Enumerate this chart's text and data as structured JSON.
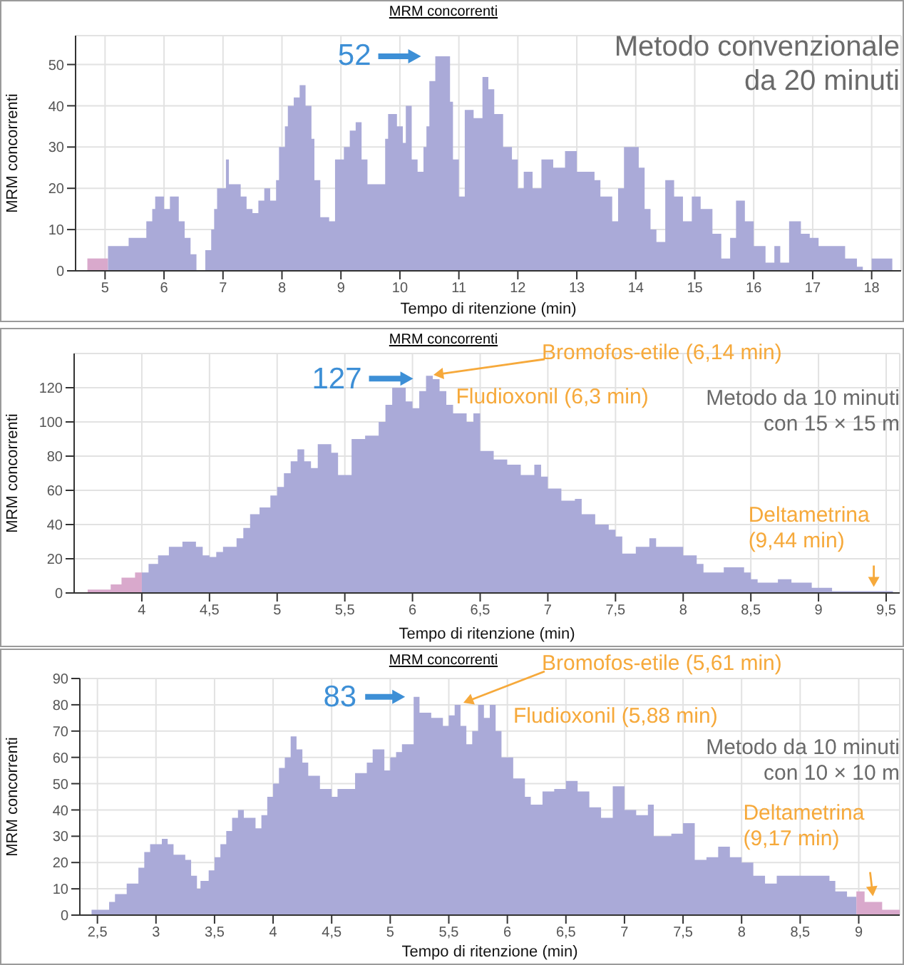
{
  "chart_data": [
    {
      "type": "area",
      "title": "MRM concorrenti",
      "subtitle": "Metodo convenzionale da 20 minuti",
      "xlabel": "Tempo di ritenzione (min)",
      "ylabel": "MRM concorrenti",
      "grid": true,
      "xlim": [
        4.5,
        18.5
      ],
      "xticks": [
        5,
        6,
        7,
        8,
        9,
        10,
        11,
        12,
        13,
        14,
        15,
        16,
        17,
        18
      ],
      "ylim": [
        0,
        57
      ],
      "yticks": [
        0,
        10,
        20,
        30,
        40,
        50
      ],
      "annotations": [
        {
          "text": "52",
          "x": 10.6,
          "y": 52
        }
      ],
      "series": [
        {
          "color": "#d9a9cc",
          "x": [
            4.7,
            5.05
          ],
          "values": [
            3,
            3
          ]
        },
        {
          "color": "#aaaad8",
          "x": [
            5.05,
            5.4,
            5.4,
            5.7,
            5.7,
            5.8,
            5.8,
            5.85,
            5.85,
            6.0,
            6.0,
            6.1,
            6.1,
            6.25,
            6.25,
            6.35,
            6.35,
            6.45,
            6.45,
            6.55,
            6.55,
            6.7,
            6.7,
            6.8,
            6.8,
            6.85,
            6.85,
            6.9,
            6.9,
            7.05,
            7.05,
            7.1,
            7.1,
            7.3,
            7.3,
            7.4,
            7.4,
            7.5,
            7.5,
            7.6,
            7.6,
            7.7,
            7.7,
            7.8,
            7.8,
            7.9,
            7.9,
            7.95,
            7.95,
            8.05,
            8.05,
            8.1,
            8.1,
            8.2,
            8.2,
            8.3,
            8.3,
            8.4,
            8.4,
            8.5,
            8.5,
            8.55,
            8.55,
            8.65,
            8.65,
            8.8,
            8.8,
            8.9,
            8.9,
            9.05,
            9.05,
            9.15,
            9.15,
            9.25,
            9.25,
            9.35,
            9.35,
            9.45,
            9.45,
            9.75,
            9.75,
            9.8,
            9.8,
            9.95,
            9.95,
            10.05,
            10.05,
            10.1,
            10.1,
            10.2,
            10.2,
            10.3,
            10.3,
            10.4,
            10.4,
            10.45,
            10.45,
            10.5,
            10.5,
            10.6,
            10.6,
            10.85,
            10.85,
            10.9,
            10.9,
            11.0,
            11.0,
            11.1,
            11.1,
            11.25,
            11.25,
            11.4,
            11.4,
            11.5,
            11.5,
            11.6,
            11.6,
            11.75,
            11.75,
            11.9,
            11.9,
            12.0,
            12.0,
            12.1,
            12.1,
            12.25,
            12.25,
            12.4,
            12.4,
            12.6,
            12.6,
            12.8,
            12.8,
            13.0,
            13.0,
            13.3,
            13.3,
            13.4,
            13.4,
            13.6,
            13.6,
            13.7,
            13.7,
            13.8,
            13.8,
            14.05,
            14.05,
            14.15,
            14.15,
            14.25,
            14.25,
            14.35,
            14.35,
            14.5,
            14.5,
            14.65,
            14.65,
            14.8,
            14.8,
            14.95,
            14.95,
            15.1,
            15.1,
            15.3,
            15.3,
            15.45,
            15.45,
            15.6,
            15.6,
            15.7,
            15.7,
            15.85,
            15.85,
            16.0,
            16.0,
            16.2,
            16.2,
            16.35,
            16.35,
            16.45,
            16.45,
            16.6,
            16.6,
            16.8,
            16.8,
            16.95,
            16.95,
            17.1,
            17.1,
            17.55,
            17.55,
            17.75,
            17.75,
            17.85,
            17.85,
            18.0,
            18.0,
            18.35
          ],
          "values": [
            6,
            6,
            8,
            8,
            12,
            12,
            15,
            15,
            18,
            18,
            15,
            15,
            18,
            18,
            12,
            12,
            8,
            8,
            4,
            4,
            0,
            0,
            5,
            5,
            10,
            10,
            15,
            15,
            20,
            20,
            27,
            27,
            21,
            21,
            18,
            18,
            15,
            15,
            14,
            14,
            17,
            17,
            20,
            20,
            17,
            17,
            22,
            22,
            30,
            30,
            35,
            35,
            40,
            40,
            42,
            42,
            45,
            45,
            40,
            40,
            32,
            32,
            22,
            22,
            13,
            13,
            12,
            12,
            27,
            27,
            30,
            30,
            34,
            34,
            36,
            36,
            27,
            27,
            21,
            21,
            32,
            32,
            38,
            38,
            35,
            35,
            31,
            31,
            40,
            40,
            27,
            27,
            24,
            24,
            30,
            30,
            35,
            35,
            46,
            46,
            52,
            52,
            41,
            41,
            27,
            27,
            18,
            18,
            39,
            39,
            37,
            37,
            47,
            47,
            44,
            44,
            38,
            38,
            30,
            30,
            27,
            27,
            20,
            20,
            24,
            24,
            20,
            20,
            27,
            27,
            25,
            25,
            29,
            29,
            24,
            24,
            22,
            22,
            18,
            18,
            12,
            12,
            20,
            20,
            30,
            30,
            25,
            25,
            15,
            15,
            10,
            10,
            7,
            7,
            22,
            22,
            18,
            18,
            12,
            12,
            18,
            18,
            15,
            15,
            9,
            9,
            3,
            3,
            8,
            8,
            17,
            17,
            12,
            12,
            6,
            6,
            2,
            2,
            6,
            6,
            2,
            2,
            12,
            12,
            9,
            9,
            8,
            8,
            6,
            6,
            3,
            3,
            1,
            1,
            0,
            0,
            3,
            3
          ]
        }
      ]
    },
    {
      "type": "area",
      "title": "MRM concorrenti",
      "subtitle": "Metodo da 10 minuti con 15 × 15 m",
      "xlabel": "Tempo di ritenzione (min)",
      "ylabel": "MRM concorrenti",
      "grid": true,
      "xlim": [
        3.5,
        9.6
      ],
      "xticks": [
        4,
        {
          "value": 4.5,
          "label": "4,5"
        },
        5,
        {
          "value": 5.5,
          "label": "5,5"
        },
        6,
        {
          "value": 6.5,
          "label": "6,5"
        },
        7,
        {
          "value": 7.5,
          "label": "7,5"
        },
        8,
        {
          "value": 8.5,
          "label": "8,5"
        },
        9,
        {
          "value": 9.5,
          "label": "9,5"
        }
      ],
      "ylim": [
        0,
        140
      ],
      "yticks": [
        0,
        20,
        40,
        60,
        80,
        100,
        120
      ],
      "annotations": [
        {
          "text": "127",
          "x": 6.1,
          "y": 127
        },
        "Bromofos-etile (6,14 min)",
        {
          "text": "Fludioxonil (6,3 min)",
          "x": 6.3,
          "y": 105
        },
        {
          "text": "Deltametrina (9,44 min)",
          "x": 9.44,
          "y": 1
        }
      ],
      "series": [
        {
          "color": "#d9a9cc",
          "x": [
            3.6,
            3.77,
            3.77,
            3.85,
            3.85,
            3.95,
            3.95,
            4.0
          ],
          "values": [
            2,
            2,
            5,
            5,
            9,
            9,
            12,
            12
          ]
        },
        {
          "color": "#aaaad8",
          "x": [
            4.0,
            4.05,
            4.05,
            4.12,
            4.12,
            4.2,
            4.2,
            4.3,
            4.3,
            4.4,
            4.4,
            4.45,
            4.45,
            4.5,
            4.5,
            4.55,
            4.55,
            4.6,
            4.6,
            4.7,
            4.7,
            4.75,
            4.75,
            4.8,
            4.8,
            4.87,
            4.87,
            4.95,
            4.95,
            5.0,
            5.0,
            5.05,
            5.05,
            5.1,
            5.1,
            5.15,
            5.15,
            5.2,
            5.2,
            5.25,
            5.25,
            5.3,
            5.3,
            5.4,
            5.4,
            5.45,
            5.45,
            5.55,
            5.55,
            5.65,
            5.65,
            5.75,
            5.75,
            5.8,
            5.8,
            5.85,
            5.85,
            5.95,
            5.95,
            6.0,
            6.0,
            6.05,
            6.05,
            6.1,
            6.1,
            6.15,
            6.15,
            6.2,
            6.2,
            6.25,
            6.25,
            6.3,
            6.3,
            6.4,
            6.4,
            6.45,
            6.45,
            6.5,
            6.5,
            6.6,
            6.6,
            6.7,
            6.7,
            6.8,
            6.8,
            6.9,
            6.9,
            6.95,
            6.95,
            7.0,
            7.0,
            7.1,
            7.1,
            7.2,
            7.2,
            7.25,
            7.25,
            7.35,
            7.35,
            7.45,
            7.45,
            7.5,
            7.5,
            7.55,
            7.55,
            7.65,
            7.65,
            7.75,
            7.75,
            7.8,
            7.8,
            8.0,
            8.0,
            8.1,
            8.1,
            8.15,
            8.15,
            8.3,
            8.3,
            8.45,
            8.45,
            8.5,
            8.5,
            8.55,
            8.55,
            8.7,
            8.7,
            8.8,
            8.8,
            8.95,
            8.95,
            9.1,
            9.1,
            9.55
          ],
          "values": [
            12,
            12,
            17,
            17,
            22,
            22,
            27,
            27,
            30,
            30,
            27,
            27,
            22,
            22,
            21,
            21,
            24,
            24,
            27,
            27,
            32,
            32,
            38,
            38,
            46,
            46,
            50,
            50,
            57,
            57,
            62,
            62,
            70,
            70,
            77,
            77,
            84,
            84,
            77,
            77,
            73,
            73,
            87,
            87,
            82,
            82,
            69,
            69,
            90,
            90,
            92,
            92,
            100,
            100,
            110,
            110,
            120,
            120,
            112,
            112,
            108,
            108,
            118,
            118,
            127,
            127,
            125,
            125,
            118,
            118,
            110,
            110,
            105,
            105,
            100,
            100,
            105,
            105,
            83,
            83,
            78,
            78,
            75,
            75,
            69,
            69,
            75,
            75,
            68,
            68,
            61,
            61,
            54,
            54,
            55,
            55,
            46,
            46,
            40,
            40,
            37,
            37,
            33,
            33,
            23,
            23,
            27,
            27,
            32,
            32,
            27,
            27,
            22,
            22,
            17,
            17,
            12,
            12,
            15,
            15,
            12,
            12,
            8,
            8,
            6,
            6,
            8,
            8,
            6,
            6,
            3,
            3,
            1,
            1
          ]
        }
      ]
    },
    {
      "type": "area",
      "title": "MRM concorrenti",
      "subtitle": "Metodo da 10 minuti con 10 × 10 m",
      "xlabel": "Tempo di ritenzione (min)",
      "ylabel": "MRM concorrenti",
      "grid": true,
      "xlim": [
        2.35,
        9.35
      ],
      "xticks": [
        {
          "value": 2.5,
          "label": "2,5"
        },
        3,
        {
          "value": 3.5,
          "label": "3,5"
        },
        4,
        {
          "value": 4.5,
          "label": "4,5"
        },
        5,
        {
          "value": 5.5,
          "label": "5,5"
        },
        6,
        {
          "value": 6.5,
          "label": "6,5"
        },
        7,
        {
          "value": 7.5,
          "label": "7,5"
        },
        8,
        {
          "value": 8.5,
          "label": "8,5"
        },
        9
      ],
      "ylim": [
        0,
        90
      ],
      "yticks": [
        0,
        10,
        20,
        30,
        40,
        50,
        60,
        70,
        80,
        90
      ],
      "annotations": [
        {
          "text": "83",
          "x": 5.2,
          "y": 83
        },
        "Bromofos-etile (5,61 min)",
        {
          "text": "Fludioxonil (5,88 min)",
          "x": 5.88,
          "y": 80
        },
        {
          "text": "Deltametrina (9,17 min)",
          "x": 9.17,
          "y": 5
        }
      ],
      "series": [
        {
          "color": "#aaaad8",
          "x": [
            2.45,
            2.6,
            2.6,
            2.65,
            2.65,
            2.75,
            2.75,
            2.85,
            2.85,
            2.9,
            2.9,
            2.95,
            2.95,
            3.05,
            3.05,
            3.1,
            3.1,
            3.15,
            3.15,
            3.25,
            3.25,
            3.3,
            3.3,
            3.35,
            3.35,
            3.38,
            3.38,
            3.45,
            3.45,
            3.5,
            3.5,
            3.55,
            3.55,
            3.6,
            3.6,
            3.65,
            3.65,
            3.7,
            3.7,
            3.75,
            3.75,
            3.85,
            3.85,
            3.9,
            3.9,
            3.95,
            3.95,
            4.0,
            4.0,
            4.05,
            4.05,
            4.1,
            4.1,
            4.15,
            4.15,
            4.2,
            4.2,
            4.25,
            4.25,
            4.3,
            4.3,
            4.4,
            4.4,
            4.5,
            4.5,
            4.55,
            4.55,
            4.7,
            4.7,
            4.8,
            4.8,
            4.85,
            4.85,
            4.95,
            4.95,
            5.0,
            5.0,
            5.05,
            5.05,
            5.1,
            5.1,
            5.2,
            5.2,
            5.25,
            5.25,
            5.35,
            5.35,
            5.45,
            5.45,
            5.5,
            5.5,
            5.55,
            5.55,
            5.6,
            5.6,
            5.65,
            5.65,
            5.7,
            5.7,
            5.75,
            5.75,
            5.8,
            5.8,
            5.85,
            5.85,
            5.9,
            5.9,
            5.95,
            5.95,
            6.05,
            6.05,
            6.15,
            6.15,
            6.2,
            6.2,
            6.3,
            6.3,
            6.4,
            6.4,
            6.5,
            6.5,
            6.6,
            6.6,
            6.7,
            6.7,
            6.8,
            6.8,
            6.9,
            6.9,
            7.0,
            7.0,
            7.1,
            7.1,
            7.2,
            7.2,
            7.25,
            7.25,
            7.4,
            7.4,
            7.5,
            7.5,
            7.6,
            7.6,
            7.7,
            7.7,
            7.8,
            7.8,
            7.9,
            7.9,
            8.0,
            8.0,
            8.1,
            8.1,
            8.2,
            8.2,
            8.3,
            8.3,
            8.75,
            8.75,
            8.8,
            8.8,
            8.9,
            8.9,
            8.98
          ],
          "values": [
            2,
            2,
            5,
            5,
            8,
            8,
            12,
            12,
            18,
            18,
            24,
            24,
            27,
            27,
            29,
            29,
            27,
            27,
            23,
            23,
            21,
            21,
            15,
            15,
            10,
            10,
            13,
            13,
            17,
            17,
            22,
            22,
            27,
            27,
            32,
            32,
            37,
            37,
            40,
            40,
            37,
            37,
            33,
            33,
            38,
            38,
            45,
            45,
            50,
            50,
            56,
            56,
            60,
            60,
            68,
            68,
            63,
            63,
            58,
            58,
            53,
            53,
            48,
            48,
            45,
            45,
            48,
            48,
            54,
            54,
            58,
            58,
            63,
            63,
            55,
            55,
            60,
            60,
            62,
            62,
            65,
            65,
            83,
            83,
            77,
            77,
            75,
            75,
            72,
            72,
            76,
            76,
            80,
            80,
            72,
            72,
            65,
            65,
            70,
            70,
            80,
            80,
            75,
            75,
            80,
            80,
            70,
            70,
            60,
            60,
            52,
            52,
            45,
            45,
            42,
            42,
            47,
            47,
            48,
            48,
            51,
            51,
            47,
            47,
            41,
            41,
            37,
            37,
            49,
            49,
            40,
            40,
            38,
            38,
            42,
            42,
            30,
            30,
            31,
            31,
            35,
            35,
            21,
            21,
            22,
            22,
            26,
            26,
            22,
            22,
            20,
            20,
            15,
            15,
            12,
            12,
            15,
            15,
            13,
            13,
            9,
            9,
            7,
            7
          ]
        },
        {
          "color": "#d9a9cc",
          "x": [
            8.98,
            9.05,
            9.05,
            9.2,
            9.2,
            9.35
          ],
          "values": [
            9,
            9,
            5,
            5,
            2,
            2
          ]
        }
      ]
    }
  ]
}
